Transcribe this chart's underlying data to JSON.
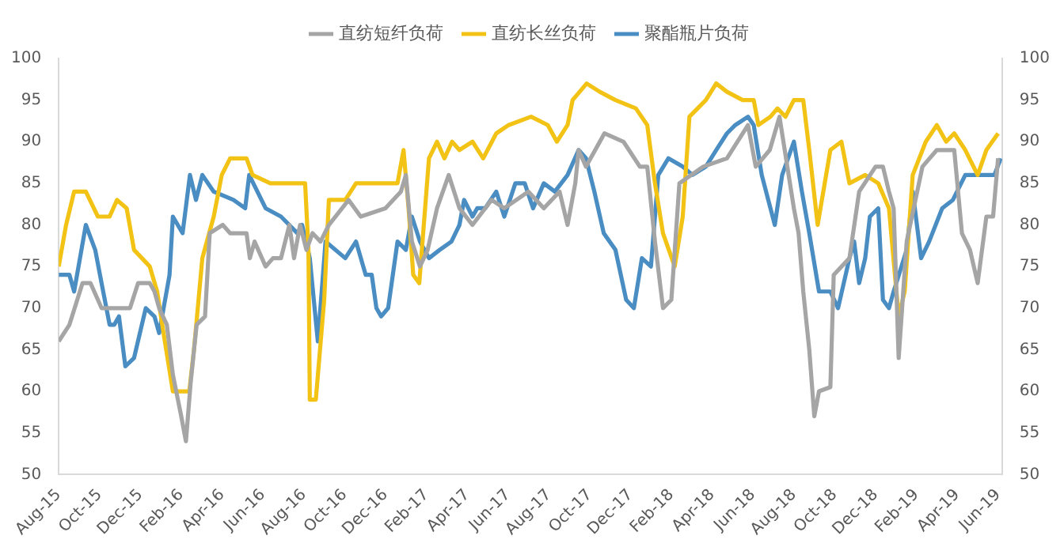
{
  "chart_data": {
    "type": "line",
    "legend": "top",
    "grid": false,
    "marker": "none",
    "line_style": "solid",
    "xlim": [
      "2015-08-01",
      "2019-06-07"
    ],
    "xticks": [
      {
        "value": "2015-08",
        "label": "Aug-15"
      },
      {
        "value": "2015-10",
        "label": "Oct-15"
      },
      {
        "value": "2015-12",
        "label": "Dec-15"
      },
      {
        "value": "2016-02",
        "label": "Feb-16"
      },
      {
        "value": "2016-04",
        "label": "Apr-16"
      },
      {
        "value": "2016-06",
        "label": "Jun-16"
      },
      {
        "value": "2016-08",
        "label": "Aug-16"
      },
      {
        "value": "2016-10",
        "label": "Oct-16"
      },
      {
        "value": "2016-12",
        "label": "Dec-16"
      },
      {
        "value": "2017-02",
        "label": "Feb-17"
      },
      {
        "value": "2017-04",
        "label": "Apr-17"
      },
      {
        "value": "2017-06",
        "label": "Jun-17"
      },
      {
        "value": "2017-08",
        "label": "Aug-17"
      },
      {
        "value": "2017-10",
        "label": "Oct-17"
      },
      {
        "value": "2017-12",
        "label": "Dec-17"
      },
      {
        "value": "2018-02",
        "label": "Feb-18"
      },
      {
        "value": "2018-04",
        "label": "Apr-18"
      },
      {
        "value": "2018-06",
        "label": "Jun-18"
      },
      {
        "value": "2018-08",
        "label": "Aug-18"
      },
      {
        "value": "2018-10",
        "label": "Oct-18"
      },
      {
        "value": "2018-12",
        "label": "Dec-18"
      },
      {
        "value": "2019-02",
        "label": "Feb-19"
      },
      {
        "value": "2019-04",
        "label": "Apr-19"
      },
      {
        "value": "2019-06",
        "label": "Jun-19"
      }
    ],
    "ylim": [
      50,
      100
    ],
    "yticks": [
      50,
      55,
      60,
      65,
      70,
      75,
      80,
      85,
      90,
      95,
      100
    ],
    "y2lim": [
      50,
      100
    ],
    "y2ticks": [
      50,
      55,
      60,
      65,
      70,
      75,
      80,
      85,
      90,
      95,
      100
    ],
    "series": [
      {
        "name": "直纺短纤负荷",
        "color": "#a5a5a5",
        "x": [
          "2015-08-01",
          "2015-08-17",
          "2015-09-06",
          "2015-09-18",
          "2015-10-04",
          "2015-10-16",
          "2015-11-16",
          "2015-11-28",
          "2015-12-15",
          "2015-12-22",
          "2015-12-29",
          "2016-01-10",
          "2016-01-19",
          "2016-02-01",
          "2016-02-08",
          "2016-02-15",
          "2016-02-24",
          "2016-03-06",
          "2016-03-13",
          "2016-04-02",
          "2016-04-13",
          "2016-05-07",
          "2016-05-12",
          "2016-05-19",
          "2016-06-05",
          "2016-06-16",
          "2016-06-28",
          "2016-07-10",
          "2016-07-17",
          "2016-07-26",
          "2016-08-05",
          "2016-08-14",
          "2016-08-26",
          "2016-09-08",
          "2016-10-07",
          "2016-10-25",
          "2016-12-01",
          "2016-12-24",
          "2017-01-01",
          "2017-01-10",
          "2017-01-22",
          "2017-02-03",
          "2017-02-17",
          "2017-03-04",
          "2017-03-20",
          "2017-04-09",
          "2017-05-07",
          "2017-05-26",
          "2017-07-01",
          "2017-07-24",
          "2017-08-17",
          "2017-08-29",
          "2017-09-10",
          "2017-09-15",
          "2017-09-26",
          "2017-10-23",
          "2017-11-21",
          "2017-12-15",
          "2017-12-26",
          "2018-01-07",
          "2018-01-19",
          "2018-02-01",
          "2018-02-13",
          "2018-03-18",
          "2018-04-23",
          "2018-05-24",
          "2018-06-05",
          "2018-06-26",
          "2018-07-10",
          "2018-08-01",
          "2018-08-08",
          "2018-08-15",
          "2018-08-24",
          "2018-09-01",
          "2018-09-08",
          "2018-09-25",
          "2018-09-30",
          "2018-10-23",
          "2018-11-07",
          "2018-12-01",
          "2018-12-12",
          "2018-12-21",
          "2018-12-28",
          "2019-01-05",
          "2019-01-17",
          "2019-02-10",
          "2019-03-01",
          "2019-03-27",
          "2019-04-08",
          "2019-04-20",
          "2019-05-01",
          "2019-05-14",
          "2019-05-24",
          "2019-06-01"
        ],
        "values": [
          66,
          68,
          73,
          73,
          70,
          70,
          70,
          73,
          73,
          72,
          70,
          68,
          62,
          57,
          54,
          61,
          68,
          69,
          79,
          80,
          79,
          79,
          76,
          78,
          75,
          76,
          76,
          80,
          76,
          80,
          77,
          79,
          78,
          80,
          83,
          81,
          82,
          84,
          86,
          78,
          75,
          77,
          82,
          86,
          82,
          80,
          83,
          82,
          84,
          82,
          84,
          80,
          85,
          89,
          87,
          91,
          90,
          87,
          87,
          78,
          70,
          71,
          85,
          87,
          88,
          92,
          87,
          89,
          93,
          82,
          79,
          72,
          65,
          57,
          60,
          60.5,
          74,
          76,
          84,
          87,
          87,
          84,
          82,
          64,
          78,
          87,
          89,
          89,
          79,
          77,
          73,
          81,
          81,
          88
        ]
      },
      {
        "name": "直纺长丝负荷",
        "color": "#f2c314",
        "x": [
          "2015-08-01",
          "2015-08-12",
          "2015-08-24",
          "2015-09-11",
          "2015-09-29",
          "2015-10-16",
          "2015-10-27",
          "2015-11-11",
          "2015-11-22",
          "2015-12-15",
          "2015-12-26",
          "2016-01-07",
          "2016-01-19",
          "2016-02-13",
          "2016-02-20",
          "2016-03-02",
          "2016-03-19",
          "2016-03-31",
          "2016-04-13",
          "2016-05-07",
          "2016-05-16",
          "2016-06-12",
          "2016-07-15",
          "2016-08-03",
          "2016-08-08",
          "2016-08-10",
          "2016-08-19",
          "2016-09-01",
          "2016-09-08",
          "2016-10-02",
          "2016-10-18",
          "2016-11-18",
          "2016-12-19",
          "2016-12-28",
          "2017-01-05",
          "2017-01-12",
          "2017-01-21",
          "2017-02-05",
          "2017-02-17",
          "2017-02-28",
          "2017-03-09",
          "2017-03-20",
          "2017-04-09",
          "2017-04-25",
          "2017-05-14",
          "2017-06-02",
          "2017-07-05",
          "2017-07-30",
          "2017-08-13",
          "2017-08-29",
          "2017-09-06",
          "2017-09-27",
          "2017-10-16",
          "2017-11-09",
          "2017-12-09",
          "2017-12-26",
          "2018-01-07",
          "2018-01-19",
          "2018-02-06",
          "2018-02-18",
          "2018-02-28",
          "2018-03-22",
          "2018-04-07",
          "2018-04-23",
          "2018-05-16",
          "2018-06-02",
          "2018-06-09",
          "2018-06-27",
          "2018-07-07",
          "2018-07-19",
          "2018-08-01",
          "2018-08-15",
          "2018-08-24",
          "2018-09-06",
          "2018-09-25",
          "2018-10-11",
          "2018-10-23",
          "2018-11-16",
          "2018-12-05",
          "2018-12-21",
          "2019-01-05",
          "2019-01-14",
          "2019-01-26",
          "2019-02-15",
          "2019-03-01",
          "2019-03-15",
          "2019-03-27",
          "2019-04-13",
          "2019-05-01",
          "2019-05-14",
          "2019-06-01"
        ],
        "values": [
          75,
          80,
          84,
          84,
          81,
          81,
          83,
          82,
          77,
          75,
          72,
          66,
          60,
          60,
          65,
          76,
          81,
          86,
          88,
          88,
          86,
          85,
          85,
          85,
          77,
          59,
          59,
          71,
          83,
          83,
          85,
          85,
          85,
          89,
          82,
          74,
          73,
          88,
          90,
          88,
          90,
          89,
          90,
          88,
          91,
          92,
          93,
          92,
          90,
          92,
          95,
          97,
          96,
          95,
          94,
          92,
          85,
          79,
          75,
          81,
          93,
          95,
          97,
          96,
          95,
          95,
          92,
          93,
          94,
          93,
          95,
          95,
          89,
          80,
          89,
          90,
          85,
          86,
          85,
          82,
          69,
          72,
          86,
          90,
          92,
          90,
          91,
          89,
          86,
          89,
          91
        ]
      },
      {
        "name": "聚酯瓶片负荷",
        "color": "#4a8dc2",
        "x": [
          "2015-08-01",
          "2015-08-17",
          "2015-08-24",
          "2015-09-11",
          "2015-09-25",
          "2015-10-04",
          "2015-10-16",
          "2015-10-23",
          "2015-10-30",
          "2015-11-09",
          "2015-11-22",
          "2015-12-09",
          "2015-12-22",
          "2015-12-29",
          "2016-01-14",
          "2016-01-19",
          "2016-02-03",
          "2016-02-14",
          "2016-02-23",
          "2016-03-02",
          "2016-03-19",
          "2016-04-18",
          "2016-05-05",
          "2016-05-11",
          "2016-06-05",
          "2016-06-28",
          "2016-07-22",
          "2016-07-29",
          "2016-08-10",
          "2016-08-22",
          "2016-09-03",
          "2016-10-02",
          "2016-10-18",
          "2016-11-02",
          "2016-11-11",
          "2016-11-18",
          "2016-11-25",
          "2016-12-05",
          "2016-12-19",
          "2017-01-01",
          "2017-01-10",
          "2017-01-22",
          "2017-02-05",
          "2017-02-21",
          "2017-03-08",
          "2017-03-20",
          "2017-03-27",
          "2017-04-09",
          "2017-04-16",
          "2017-04-28",
          "2017-05-14",
          "2017-05-26",
          "2017-06-12",
          "2017-06-26",
          "2017-07-08",
          "2017-07-24",
          "2017-08-10",
          "2017-08-29",
          "2017-09-15",
          "2017-09-26",
          "2017-10-08",
          "2017-10-22",
          "2017-11-09",
          "2017-11-25",
          "2017-12-06",
          "2017-12-18",
          "2018-01-01",
          "2018-01-12",
          "2018-01-27",
          "2018-02-18",
          "2018-03-02",
          "2018-03-22",
          "2018-04-07",
          "2018-04-23",
          "2018-05-05",
          "2018-05-24",
          "2018-06-02",
          "2018-06-14",
          "2018-07-03",
          "2018-07-14",
          "2018-08-01",
          "2018-08-13",
          "2018-08-24",
          "2018-09-08",
          "2018-09-25",
          "2018-10-06",
          "2018-10-23",
          "2018-10-30",
          "2018-11-07",
          "2018-11-16",
          "2018-11-23",
          "2018-12-05",
          "2018-12-12",
          "2018-12-21",
          "2018-12-28",
          "2019-01-17",
          "2019-01-26",
          "2019-02-08",
          "2019-02-20",
          "2019-03-09",
          "2019-03-25",
          "2019-04-13",
          "2019-05-01",
          "2019-05-14",
          "2019-05-26",
          "2019-06-05"
        ],
        "values": [
          74,
          74,
          72,
          80,
          77,
          73,
          68,
          68,
          69,
          63,
          64,
          70,
          69,
          67,
          74,
          81,
          79,
          86,
          83,
          86,
          84,
          83,
          82,
          86,
          82,
          81,
          79,
          80,
          76,
          66,
          78,
          76,
          78,
          74,
          74,
          70,
          69,
          70,
          78,
          77,
          81,
          78,
          76,
          77,
          78,
          80,
          83,
          81,
          82,
          82,
          84,
          81,
          85,
          85,
          82,
          85,
          84,
          86,
          89,
          88,
          84,
          79,
          77,
          71,
          70,
          76,
          75,
          86,
          88,
          87,
          86,
          87,
          89,
          91,
          92,
          93,
          92,
          86,
          80,
          86,
          90,
          84,
          79,
          72,
          72,
          70,
          76,
          78,
          73,
          76,
          81,
          82,
          71,
          70,
          72,
          77,
          84,
          76,
          78,
          82,
          83,
          86,
          86,
          86,
          86,
          88
        ]
      }
    ]
  }
}
